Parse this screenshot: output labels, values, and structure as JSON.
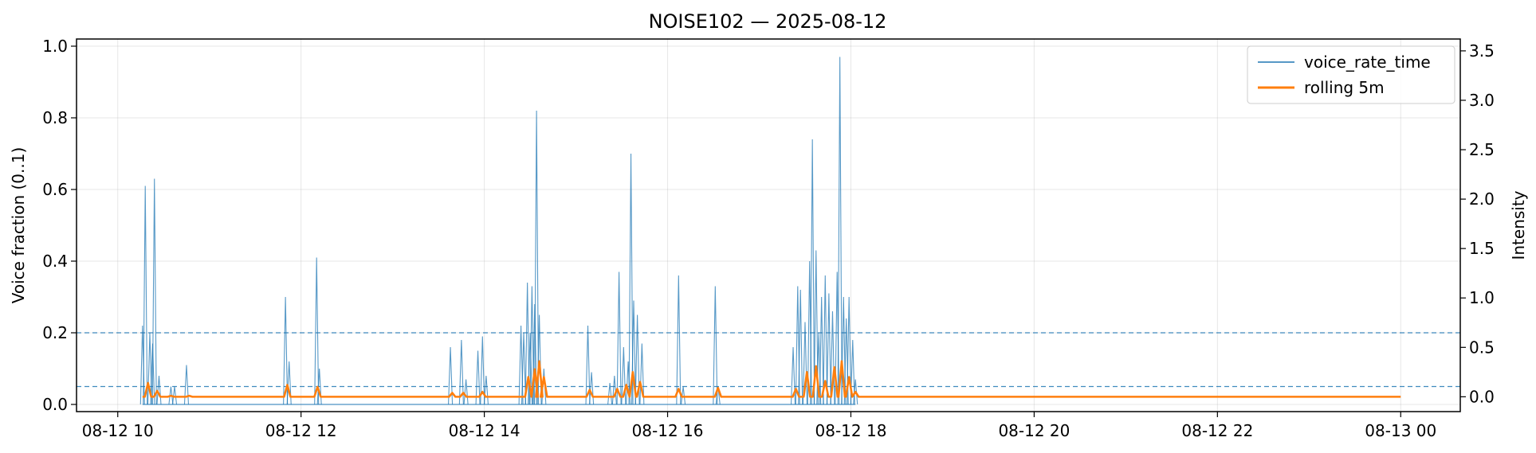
{
  "chart_data": {
    "type": "line",
    "title": "NOISE102 — 2025-08-12",
    "xlabel": "",
    "ylabel": "Voice fraction (0..1)",
    "ylabel_right": "Intensity",
    "ylim": [
      -0.02,
      1.02
    ],
    "ylim_right": [
      -0.15,
      3.62
    ],
    "xlim_hours": [
      9.55,
      24.65
    ],
    "x_ticks": [
      {
        "hour": 10,
        "label": "08-12 10"
      },
      {
        "hour": 12,
        "label": "08-12 12"
      },
      {
        "hour": 14,
        "label": "08-12 14"
      },
      {
        "hour": 16,
        "label": "08-12 16"
      },
      {
        "hour": 18,
        "label": "08-12 18"
      },
      {
        "hour": 20,
        "label": "08-12 20"
      },
      {
        "hour": 22,
        "label": "08-12 22"
      },
      {
        "hour": 24,
        "label": "08-13 00"
      }
    ],
    "y_ticks": [
      "0.0",
      "0.2",
      "0.4",
      "0.6",
      "0.8",
      "1.0"
    ],
    "y_ticks_right": [
      "0.0",
      "0.5",
      "1.0",
      "1.5",
      "2.0",
      "2.5",
      "3.0",
      "3.5"
    ],
    "grid": true,
    "legend_position": "top-right",
    "reference_lines": [
      0.2,
      0.05
    ],
    "series": [
      {
        "name": "voice_rate_time",
        "color": "#1f77b4",
        "axis": "left",
        "peaks": [
          [
            10.27,
            0.22
          ],
          [
            10.3,
            0.61
          ],
          [
            10.35,
            0.2
          ],
          [
            10.38,
            0.17
          ],
          [
            10.4,
            0.63
          ],
          [
            10.45,
            0.08
          ],
          [
            10.58,
            0.05
          ],
          [
            10.62,
            0.05
          ],
          [
            10.75,
            0.11
          ],
          [
            11.83,
            0.3
          ],
          [
            11.87,
            0.12
          ],
          [
            12.17,
            0.41
          ],
          [
            12.2,
            0.1
          ],
          [
            13.63,
            0.16
          ],
          [
            13.75,
            0.18
          ],
          [
            13.8,
            0.07
          ],
          [
            13.93,
            0.15
          ],
          [
            13.98,
            0.19
          ],
          [
            14.02,
            0.08
          ],
          [
            14.4,
            0.22
          ],
          [
            14.43,
            0.2
          ],
          [
            14.47,
            0.34
          ],
          [
            14.5,
            0.2
          ],
          [
            14.52,
            0.33
          ],
          [
            14.55,
            0.28
          ],
          [
            14.57,
            0.82
          ],
          [
            14.6,
            0.25
          ],
          [
            14.65,
            0.1
          ],
          [
            15.13,
            0.22
          ],
          [
            15.17,
            0.09
          ],
          [
            15.37,
            0.06
          ],
          [
            15.42,
            0.08
          ],
          [
            15.47,
            0.37
          ],
          [
            15.52,
            0.16
          ],
          [
            15.57,
            0.12
          ],
          [
            15.6,
            0.7
          ],
          [
            15.63,
            0.29
          ],
          [
            15.67,
            0.25
          ],
          [
            15.72,
            0.17
          ],
          [
            16.12,
            0.36
          ],
          [
            16.17,
            0.05
          ],
          [
            16.52,
            0.33
          ],
          [
            16.55,
            0.05
          ],
          [
            17.37,
            0.16
          ],
          [
            17.42,
            0.33
          ],
          [
            17.45,
            0.32
          ],
          [
            17.5,
            0.23
          ],
          [
            17.55,
            0.4
          ],
          [
            17.58,
            0.74
          ],
          [
            17.62,
            0.43
          ],
          [
            17.65,
            0.2
          ],
          [
            17.68,
            0.3
          ],
          [
            17.72,
            0.36
          ],
          [
            17.76,
            0.31
          ],
          [
            17.8,
            0.26
          ],
          [
            17.85,
            0.37
          ],
          [
            17.88,
            0.97
          ],
          [
            17.92,
            0.3
          ],
          [
            17.95,
            0.24
          ],
          [
            17.98,
            0.3
          ],
          [
            18.02,
            0.18
          ],
          [
            18.05,
            0.07
          ]
        ]
      },
      {
        "name": "rolling 5m",
        "color": "#ff7f0e",
        "axis": "right",
        "start_hour": 10.27,
        "end_hour": 24.0,
        "bumps": [
          [
            10.33,
            0.14
          ],
          [
            10.43,
            0.06
          ],
          [
            10.58,
            0.01
          ],
          [
            10.78,
            0.01
          ],
          [
            11.85,
            0.12
          ],
          [
            12.18,
            0.1
          ],
          [
            13.65,
            0.04
          ],
          [
            13.77,
            0.04
          ],
          [
            13.98,
            0.05
          ],
          [
            14.48,
            0.2
          ],
          [
            14.55,
            0.28
          ],
          [
            14.6,
            0.36
          ],
          [
            14.65,
            0.2
          ],
          [
            15.15,
            0.07
          ],
          [
            15.45,
            0.08
          ],
          [
            15.55,
            0.12
          ],
          [
            15.62,
            0.25
          ],
          [
            15.7,
            0.15
          ],
          [
            16.12,
            0.08
          ],
          [
            16.55,
            0.09
          ],
          [
            17.4,
            0.08
          ],
          [
            17.52,
            0.25
          ],
          [
            17.62,
            0.31
          ],
          [
            17.72,
            0.16
          ],
          [
            17.82,
            0.3
          ],
          [
            17.9,
            0.36
          ],
          [
            17.98,
            0.2
          ],
          [
            18.05,
            0.05
          ]
        ]
      }
    ]
  }
}
